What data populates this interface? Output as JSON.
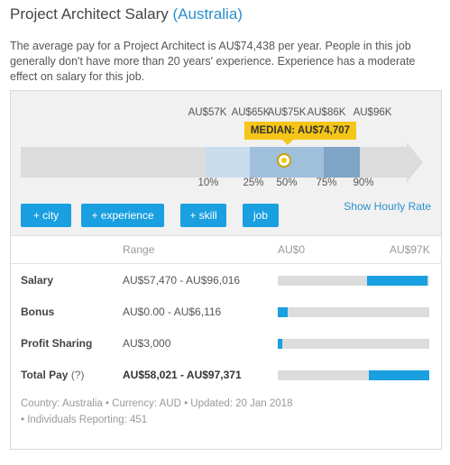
{
  "header": {
    "title": "Project Architect Salary",
    "location": "(Australia)"
  },
  "description": "The average pay for a Project Architect is AU$74,438 per year. People in this job generally don't have more than 20 years' experience. Experience has a moderate effect on salary for this job.",
  "range_chart": {
    "value_labels": [
      "AU$57K",
      "AU$65K",
      "AU$75K",
      "AU$86K",
      "AU$96K"
    ],
    "median_label": "MEDIAN: AU$74,707",
    "percentiles": [
      "10%",
      "25%",
      "50%",
      "75%",
      "90%"
    ]
  },
  "buttons": {
    "city": "+ city",
    "experience": "+ experience",
    "skill": "+ skill",
    "job": "job"
  },
  "hourly_link": "Show Hourly Rate",
  "table": {
    "col_range": "Range",
    "col_min": "AU$0",
    "col_max": "AU$97K",
    "rows": [
      {
        "label": "Salary",
        "range": "AU$57,470 - AU$96,016",
        "bar_start": 0.59,
        "bar_end": 0.99
      },
      {
        "label": "Bonus",
        "range": "AU$0.00 - AU$6,116",
        "bar_start": 0.0,
        "bar_end": 0.063
      },
      {
        "label": "Profit Sharing",
        "range": "AU$3,000",
        "bar_start": 0.0,
        "bar_end": 0.031
      },
      {
        "label": "Total Pay",
        "help": "(?)",
        "range": "AU$58,021 - AU$97,371",
        "bar_start": 0.6,
        "bar_end": 1.0
      }
    ]
  },
  "footer": {
    "line1": "Country: Australia • Currency: AUD • Updated: 20 Jan 2018",
    "line2": "• Individuals Reporting: 451"
  },
  "colors": {
    "accent": "#1a9fe0",
    "median": "#f5c518",
    "link": "#2a8fcb"
  }
}
